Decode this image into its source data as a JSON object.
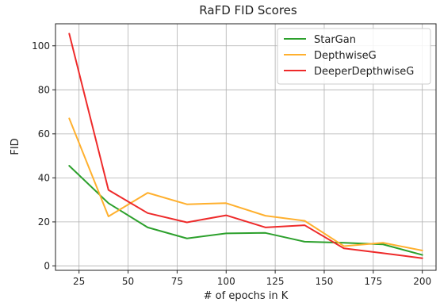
{
  "chart_data": {
    "type": "line",
    "title": "RaFD FID Scores",
    "xlabel": "# of epochs in K",
    "ylabel": "FID",
    "xlim": [
      13,
      207
    ],
    "ylim": [
      -2,
      110
    ],
    "xticks": [
      25,
      50,
      75,
      100,
      125,
      150,
      175,
      200
    ],
    "yticks": [
      0,
      20,
      40,
      60,
      80,
      100
    ],
    "grid": true,
    "legend_position": "top-right",
    "x": [
      20,
      40,
      60,
      80,
      100,
      120,
      140,
      160,
      180,
      200
    ],
    "series": [
      {
        "name": "StarGan",
        "color": "#2ca02c",
        "values": [
          45.5,
          28.5,
          17.5,
          12.5,
          14.8,
          15.0,
          11.0,
          10.5,
          9.8,
          5.0
        ]
      },
      {
        "name": " DepthwiseG",
        "color": "#ffb02e",
        "values": [
          67.0,
          22.5,
          33.2,
          28.0,
          28.5,
          22.8,
          20.5,
          9.0,
          10.5,
          7.0
        ]
      },
      {
        "name": " DeeperDepthwiseG",
        "color": "#ee2a2a",
        "values": [
          105.5,
          34.5,
          24.0,
          19.8,
          23.0,
          17.5,
          18.5,
          8.0,
          5.8,
          3.5
        ]
      }
    ]
  }
}
